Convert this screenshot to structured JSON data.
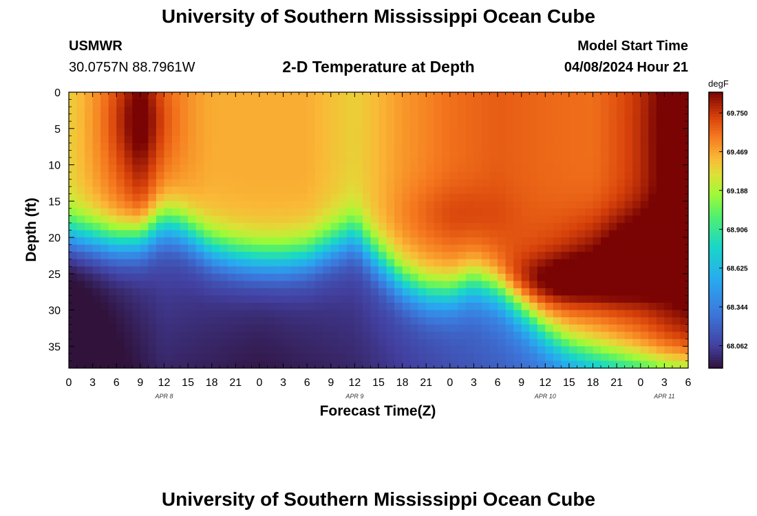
{
  "header": {
    "title": "University of Southern Mississippi Ocean Cube",
    "station": "USMWR",
    "coords": "30.0757N  88.7961W",
    "subtitle": "2-D Temperature at Depth",
    "model_start_label": "Model Start Time",
    "model_start_value": "04/08/2024 Hour 21"
  },
  "footer": {
    "title": "University of Southern Mississippi Ocean Cube"
  },
  "chart_data": {
    "type": "heatmap",
    "title": "2-D Temperature at Depth",
    "xlabel": "Forecast Time(Z)",
    "ylabel": "Depth (ft)",
    "x_range_hours": [
      0,
      78
    ],
    "ylim": [
      0,
      38
    ],
    "y_ticks": [
      0,
      5,
      10,
      15,
      20,
      25,
      30,
      35
    ],
    "x_tick_labels": [
      "0",
      "3",
      "6",
      "9",
      "12",
      "15",
      "18",
      "21",
      "0",
      "3",
      "6",
      "9",
      "12",
      "15",
      "18",
      "21",
      "0",
      "3",
      "6",
      "9",
      "12",
      "15",
      "18",
      "21",
      "0",
      "3",
      "6"
    ],
    "date_labels": [
      {
        "label": "APR 8",
        "hour": 12
      },
      {
        "label": "APR 9",
        "hour": 36
      },
      {
        "label": "APR 10",
        "hour": 60
      },
      {
        "label": "APR 11",
        "hour": 75
      }
    ],
    "colorbar": {
      "units": "degF",
      "min": 67.9,
      "max": 69.9,
      "ticks": [
        "69.750",
        "69.469",
        "69.188",
        "68.906",
        "68.625",
        "68.344",
        "68.062"
      ]
    },
    "thermocline_depth_ft": [
      {
        "hour": 0,
        "depth": 19.5
      },
      {
        "hour": 3,
        "depth": 20
      },
      {
        "hour": 6,
        "depth": 20.5
      },
      {
        "hour": 9,
        "depth": 20
      },
      {
        "hour": 12,
        "depth": 18
      },
      {
        "hour": 14,
        "depth": 18.5
      },
      {
        "hour": 18,
        "depth": 21.5
      },
      {
        "hour": 21,
        "depth": 22.5
      },
      {
        "hour": 24,
        "depth": 23
      },
      {
        "hour": 27,
        "depth": 23
      },
      {
        "hour": 30,
        "depth": 22.5
      },
      {
        "hour": 33,
        "depth": 21
      },
      {
        "hour": 36,
        "depth": 19.5
      },
      {
        "hour": 39,
        "depth": 23
      },
      {
        "hour": 42,
        "depth": 26
      },
      {
        "hour": 45,
        "depth": 27.5
      },
      {
        "hour": 48,
        "depth": 27.5
      },
      {
        "hour": 51,
        "depth": 26
      },
      {
        "hour": 54,
        "depth": 27
      },
      {
        "hour": 57,
        "depth": 30
      },
      {
        "hour": 60,
        "depth": 33
      },
      {
        "hour": 63,
        "depth": 35
      },
      {
        "hour": 66,
        "depth": 36
      },
      {
        "hour": 69,
        "depth": 36.5
      },
      {
        "hour": 72,
        "depth": 37
      },
      {
        "hour": 75,
        "depth": 37.5
      },
      {
        "hour": 78,
        "depth": 37.5
      }
    ],
    "surface_temp_degF": [
      {
        "hour": 0,
        "temp": 69.35
      },
      {
        "hour": 6,
        "temp": 69.6
      },
      {
        "hour": 9,
        "temp": 69.75
      },
      {
        "hour": 12,
        "temp": 69.55
      },
      {
        "hour": 18,
        "temp": 69.45
      },
      {
        "hour": 24,
        "temp": 69.45
      },
      {
        "hour": 30,
        "temp": 69.45
      },
      {
        "hour": 36,
        "temp": 69.35
      },
      {
        "hour": 42,
        "temp": 69.5
      },
      {
        "hour": 48,
        "temp": 69.6
      },
      {
        "hour": 54,
        "temp": 69.65
      },
      {
        "hour": 60,
        "temp": 69.62
      },
      {
        "hour": 66,
        "temp": 69.6
      },
      {
        "hour": 72,
        "temp": 69.7
      },
      {
        "hour": 78,
        "temp": 69.85
      }
    ],
    "bottom_temp_degF": [
      {
        "hour": 0,
        "temp": 68.0
      },
      {
        "hour": 12,
        "temp": 68.2
      },
      {
        "hour": 24,
        "temp": 68.15
      },
      {
        "hour": 36,
        "temp": 68.2
      },
      {
        "hour": 48,
        "temp": 68.35
      },
      {
        "hour": 60,
        "temp": 68.5
      },
      {
        "hour": 66,
        "temp": 68.6
      },
      {
        "hour": 72,
        "temp": 68.75
      },
      {
        "hour": 78,
        "temp": 68.9
      }
    ],
    "warm_patches": [
      {
        "hour": 9,
        "depth": 4,
        "dt": 0.22,
        "sh": 3,
        "sd": 5
      },
      {
        "hour": 80,
        "depth": 6,
        "dt": 0.3,
        "sh": 5,
        "sd": 12
      },
      {
        "hour": 73,
        "depth": 22,
        "dt": 0.35,
        "sh": 7,
        "sd": 4
      },
      {
        "hour": 64,
        "depth": 26,
        "dt": 0.38,
        "sh": 6,
        "sd": 2.5
      },
      {
        "hour": 48,
        "depth": 17,
        "dt": 0.1,
        "sh": 5,
        "sd": 3
      }
    ]
  }
}
